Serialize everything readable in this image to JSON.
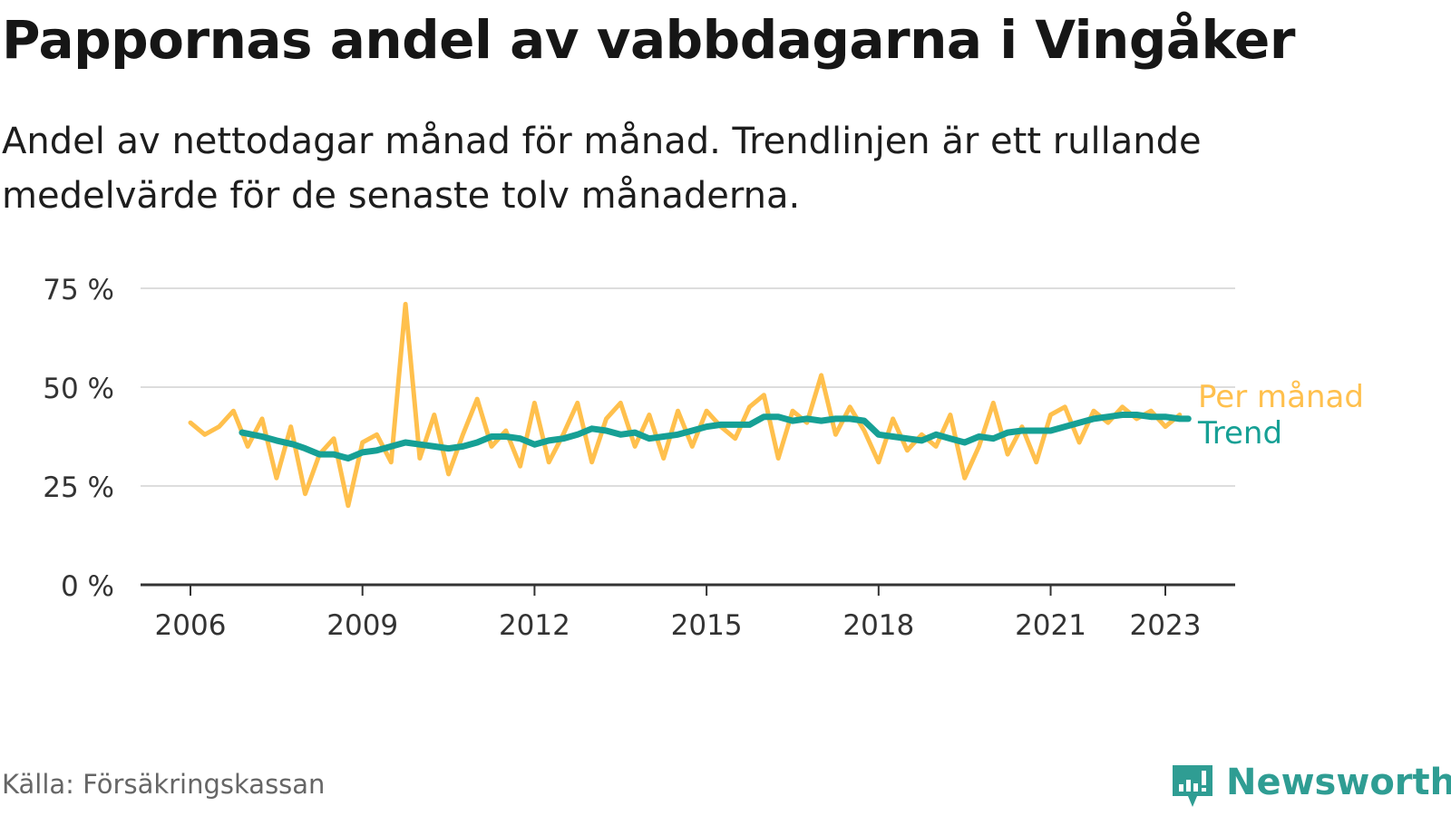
{
  "title": "Pappornas andel av vabbdagarna i Vingåker",
  "subtitle": "Andel av nettodagar månad för månad. Trendlinjen är ett rullande medelvärde för de senaste tolv månaderna.",
  "source": "Källa: Försäkringskassan",
  "brand": {
    "name": "Newsworthy",
    "logo": "newsworthy-logo-icon",
    "color": "#2f9d93"
  },
  "chart_data": {
    "type": "line",
    "x_unit": "year",
    "ylim": [
      0,
      75
    ],
    "xlim": [
      2005.9,
      2024.2
    ],
    "yticks": [
      0,
      25,
      50,
      75
    ],
    "ytick_labels": [
      "0 %",
      "25 %",
      "50 %",
      "75 %"
    ],
    "xticks": [
      2006,
      2009,
      2012,
      2015,
      2018,
      2021,
      2023
    ],
    "xtick_labels": [
      "2006",
      "2009",
      "2012",
      "2015",
      "2018",
      "2021",
      "2023"
    ],
    "grid": true,
    "legend": "direct-labels-right",
    "series": [
      {
        "name": "Per månad",
        "color": "#ffc04d",
        "x": [
          2006.0,
          2006.25,
          2006.5,
          2006.75,
          2007.0,
          2007.25,
          2007.5,
          2007.75,
          2008.0,
          2008.25,
          2008.5,
          2008.75,
          2009.0,
          2009.25,
          2009.5,
          2009.75,
          2010.0,
          2010.25,
          2010.5,
          2010.75,
          2011.0,
          2011.25,
          2011.5,
          2011.75,
          2012.0,
          2012.25,
          2012.5,
          2012.75,
          2013.0,
          2013.25,
          2013.5,
          2013.75,
          2014.0,
          2014.25,
          2014.5,
          2014.75,
          2015.0,
          2015.25,
          2015.5,
          2015.75,
          2016.0,
          2016.25,
          2016.5,
          2016.75,
          2017.0,
          2017.25,
          2017.5,
          2017.75,
          2018.0,
          2018.25,
          2018.5,
          2018.75,
          2019.0,
          2019.25,
          2019.5,
          2019.75,
          2020.0,
          2020.25,
          2020.5,
          2020.75,
          2021.0,
          2021.25,
          2021.5,
          2021.75,
          2022.0,
          2022.25,
          2022.5,
          2022.75,
          2023.0,
          2023.25
        ],
        "y": [
          41,
          38,
          40,
          44,
          35,
          42,
          27,
          40,
          23,
          33,
          37,
          20,
          36,
          38,
          31,
          71,
          32,
          43,
          28,
          38,
          47,
          35,
          39,
          30,
          46,
          31,
          38,
          46,
          31,
          42,
          46,
          35,
          43,
          32,
          44,
          35,
          44,
          40,
          37,
          45,
          48,
          32,
          44,
          41,
          53,
          38,
          45,
          39,
          31,
          42,
          34,
          38,
          35,
          43,
          27,
          35,
          46,
          33,
          40,
          31,
          43,
          45,
          36,
          44,
          41,
          45,
          42,
          44,
          40,
          43
        ]
      },
      {
        "name": "Trend",
        "color": "#16a095",
        "x": [
          2006.9,
          2007.25,
          2007.5,
          2007.8,
          2008.0,
          2008.25,
          2008.5,
          2008.75,
          2009.0,
          2009.25,
          2009.5,
          2009.75,
          2010.0,
          2010.25,
          2010.5,
          2010.75,
          2011.0,
          2011.25,
          2011.5,
          2011.75,
          2012.0,
          2012.25,
          2012.5,
          2012.75,
          2013.0,
          2013.25,
          2013.5,
          2013.75,
          2014.0,
          2014.25,
          2014.5,
          2014.75,
          2015.0,
          2015.25,
          2015.5,
          2015.75,
          2016.0,
          2016.25,
          2016.5,
          2016.75,
          2017.0,
          2017.25,
          2017.5,
          2017.75,
          2018.0,
          2018.25,
          2018.5,
          2018.75,
          2019.0,
          2019.25,
          2019.5,
          2019.75,
          2020.0,
          2020.25,
          2020.5,
          2020.75,
          2021.0,
          2021.25,
          2021.5,
          2021.75,
          2022.0,
          2022.25,
          2022.5,
          2022.75,
          2023.0,
          2023.25,
          2023.4
        ],
        "y": [
          38.5,
          37.5,
          36.5,
          35.5,
          34.5,
          33.0,
          33.0,
          32.0,
          33.5,
          34.0,
          35.0,
          36.0,
          35.5,
          35.0,
          34.5,
          35.0,
          36.0,
          37.5,
          37.5,
          37.0,
          35.5,
          36.5,
          37.0,
          38.0,
          39.5,
          39.0,
          38.0,
          38.5,
          37.0,
          37.5,
          38.0,
          39.0,
          40.0,
          40.5,
          40.5,
          40.5,
          42.5,
          42.5,
          41.5,
          42.0,
          41.5,
          42.0,
          42.0,
          41.5,
          38.0,
          37.5,
          37.0,
          36.5,
          38.0,
          37.0,
          36.0,
          37.5,
          37.0,
          38.5,
          39.0,
          39.0,
          39.0,
          40.0,
          41.0,
          42.0,
          42.5,
          43.0,
          43.0,
          42.5,
          42.5,
          42.0,
          42.0
        ]
      }
    ]
  }
}
